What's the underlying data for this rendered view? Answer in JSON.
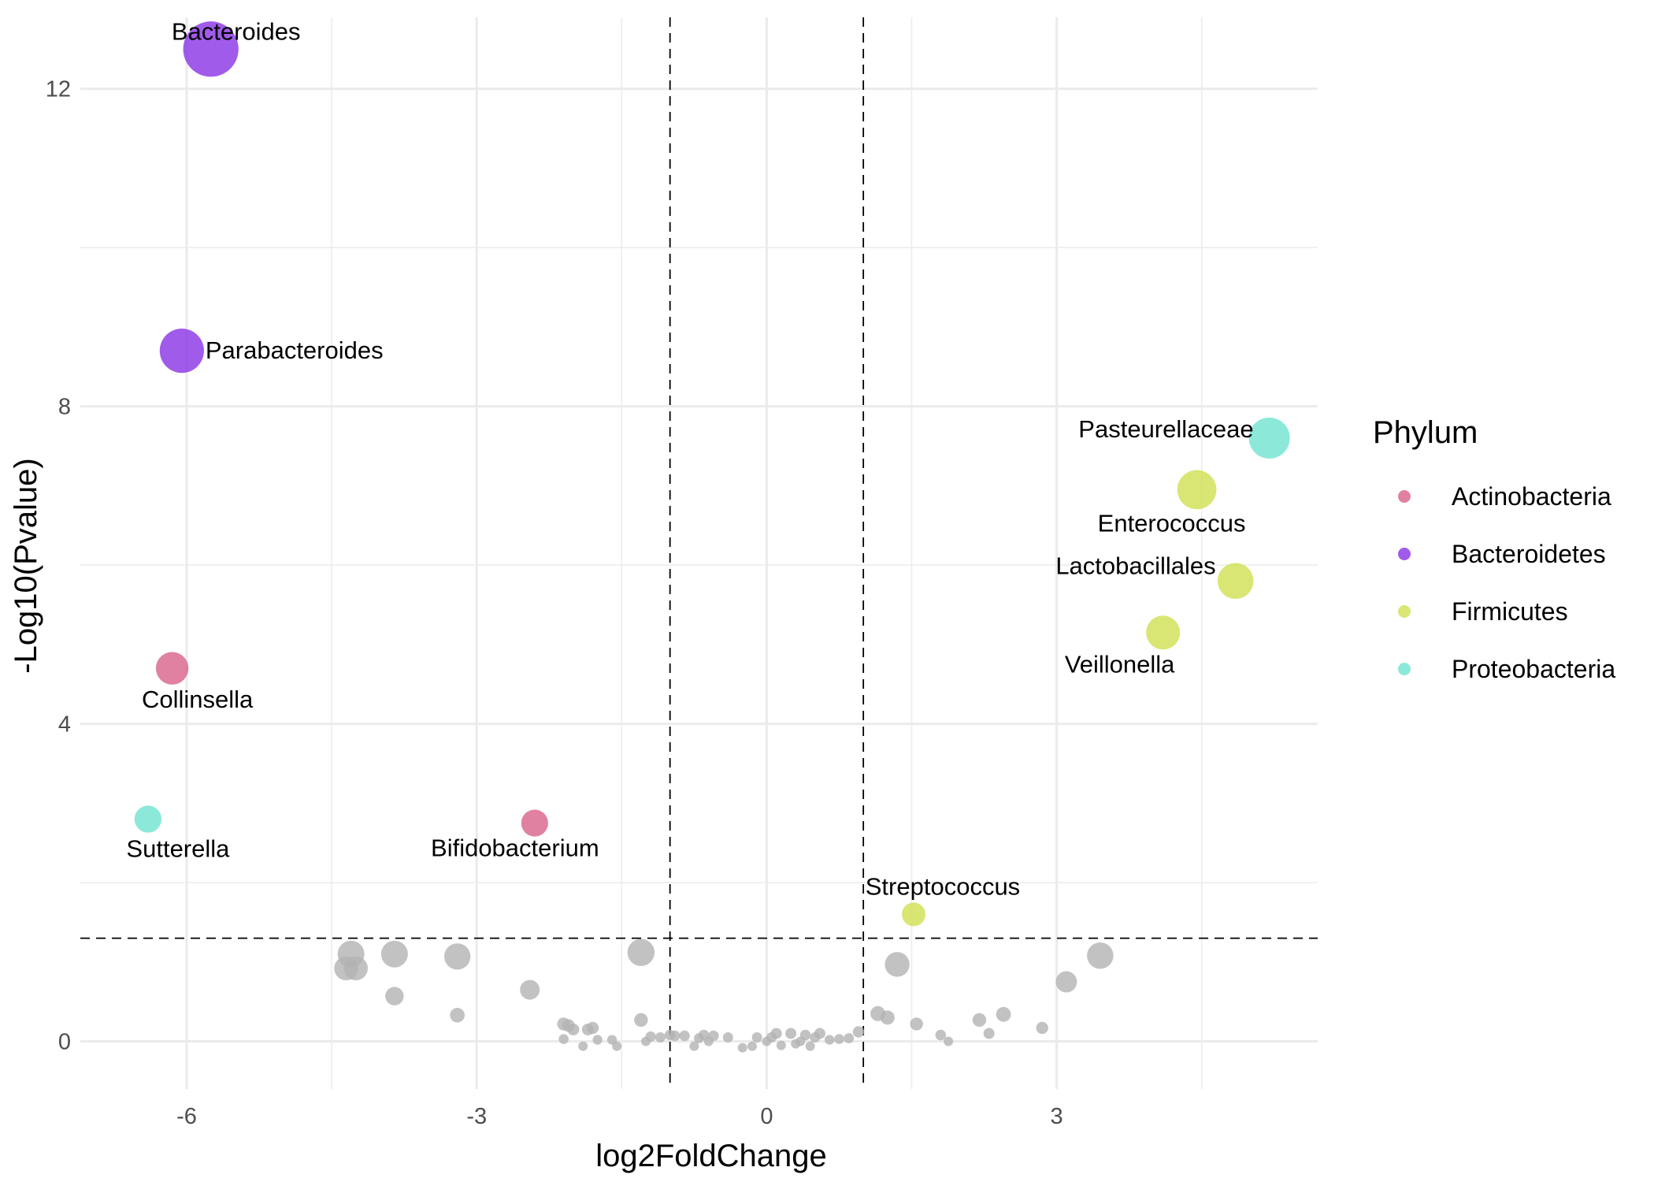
{
  "chart_data": {
    "type": "scatter",
    "xlabel": "log2FoldChange",
    "ylabel": "-Log10(Pvalue)",
    "xlim": [
      -7.1,
      5.7
    ],
    "ylim": [
      -0.6,
      12.9
    ],
    "x_ticks": [
      -6,
      -3,
      0,
      3
    ],
    "y_ticks": [
      0,
      4,
      8,
      12
    ],
    "grid": true,
    "thresholds": {
      "x": [
        -1,
        1
      ],
      "y": 1.3
    },
    "legend": {
      "title": "Phylum",
      "position": "right"
    },
    "colors": {
      "Actinobacteria": "#d9628a",
      "Bacteroidetes": "#8a32e6",
      "Firmicutes": "#cfe050",
      "Proteobacteria": "#6fe3cf",
      "nonsignificant": "#b3b3b3"
    },
    "series": [
      {
        "name": "Actinobacteria",
        "points": [
          {
            "label": "Collinsella",
            "x": -6.15,
            "y": 4.7
          },
          {
            "label": "Bifidobacterium",
            "x": -2.4,
            "y": 2.75
          }
        ]
      },
      {
        "name": "Bacteroidetes",
        "points": [
          {
            "label": "Bacteroides",
            "x": -5.75,
            "y": 12.5
          },
          {
            "label": "Parabacteroides",
            "x": -6.05,
            "y": 8.7
          }
        ]
      },
      {
        "name": "Firmicutes",
        "points": [
          {
            "label": "Enterococcus",
            "x": 4.45,
            "y": 6.95
          },
          {
            "label": "Lactobacillales",
            "x": 4.85,
            "y": 5.8
          },
          {
            "label": "Veillonella",
            "x": 4.1,
            "y": 5.15
          },
          {
            "label": "Streptococcus",
            "x": 1.52,
            "y": 1.6
          }
        ]
      },
      {
        "name": "Proteobacteria",
        "points": [
          {
            "label": "Pasteurellaceae",
            "x": 5.2,
            "y": 7.6
          },
          {
            "label": "Sutterella",
            "x": -6.4,
            "y": 2.8
          }
        ]
      }
    ],
    "nonsignificant_points": [
      {
        "x": -4.3,
        "y": 1.1
      },
      {
        "x": -4.35,
        "y": 0.92
      },
      {
        "x": -4.25,
        "y": 0.92
      },
      {
        "x": -3.85,
        "y": 1.1
      },
      {
        "x": -3.85,
        "y": 0.57
      },
      {
        "x": -3.2,
        "y": 1.07
      },
      {
        "x": -3.2,
        "y": 0.33
      },
      {
        "x": -2.45,
        "y": 0.65
      },
      {
        "x": -1.3,
        "y": 1.12
      },
      {
        "x": -1.3,
        "y": 0.27
      },
      {
        "x": -2.1,
        "y": 0.22
      },
      {
        "x": -2.05,
        "y": 0.2
      },
      {
        "x": -2.0,
        "y": 0.15
      },
      {
        "x": -1.85,
        "y": 0.15
      },
      {
        "x": -1.8,
        "y": 0.17
      },
      {
        "x": -1.75,
        "y": 0.02
      },
      {
        "x": -1.6,
        "y": 0.02
      },
      {
        "x": -1.55,
        "y": -0.06
      },
      {
        "x": -2.1,
        "y": 0.03
      },
      {
        "x": -1.9,
        "y": -0.06
      },
      {
        "x": -1.25,
        "y": 0.0
      },
      {
        "x": -1.2,
        "y": 0.06
      },
      {
        "x": -1.1,
        "y": 0.05
      },
      {
        "x": -1.0,
        "y": 0.08
      },
      {
        "x": -0.95,
        "y": 0.07
      },
      {
        "x": -0.85,
        "y": 0.07
      },
      {
        "x": -0.75,
        "y": -0.06
      },
      {
        "x": -0.7,
        "y": 0.04
      },
      {
        "x": -0.65,
        "y": 0.08
      },
      {
        "x": -0.6,
        "y": 0.0
      },
      {
        "x": -0.55,
        "y": 0.07
      },
      {
        "x": -0.4,
        "y": 0.05
      },
      {
        "x": -0.25,
        "y": -0.08
      },
      {
        "x": -0.15,
        "y": -0.06
      },
      {
        "x": -0.1,
        "y": 0.05
      },
      {
        "x": 0.0,
        "y": 0.0
      },
      {
        "x": 0.05,
        "y": 0.05
      },
      {
        "x": 0.1,
        "y": 0.1
      },
      {
        "x": 0.15,
        "y": -0.05
      },
      {
        "x": 0.25,
        "y": 0.1
      },
      {
        "x": 0.3,
        "y": -0.03
      },
      {
        "x": 0.35,
        "y": 0.0
      },
      {
        "x": 0.4,
        "y": 0.08
      },
      {
        "x": 0.45,
        "y": -0.06
      },
      {
        "x": 0.5,
        "y": 0.05
      },
      {
        "x": 0.55,
        "y": 0.1
      },
      {
        "x": 0.65,
        "y": 0.02
      },
      {
        "x": 0.75,
        "y": 0.03
      },
      {
        "x": 0.85,
        "y": 0.04
      },
      {
        "x": 0.95,
        "y": 0.12
      },
      {
        "x": 1.15,
        "y": 0.35
      },
      {
        "x": 1.25,
        "y": 0.3
      },
      {
        "x": 1.35,
        "y": 0.97
      },
      {
        "x": 1.55,
        "y": 0.22
      },
      {
        "x": 1.8,
        "y": 0.08
      },
      {
        "x": 1.88,
        "y": 0.0
      },
      {
        "x": 2.2,
        "y": 0.27
      },
      {
        "x": 2.3,
        "y": 0.1
      },
      {
        "x": 2.45,
        "y": 0.34
      },
      {
        "x": 2.85,
        "y": 0.17
      },
      {
        "x": 3.1,
        "y": 0.75
      },
      {
        "x": 3.45,
        "y": 1.08
      }
    ]
  }
}
